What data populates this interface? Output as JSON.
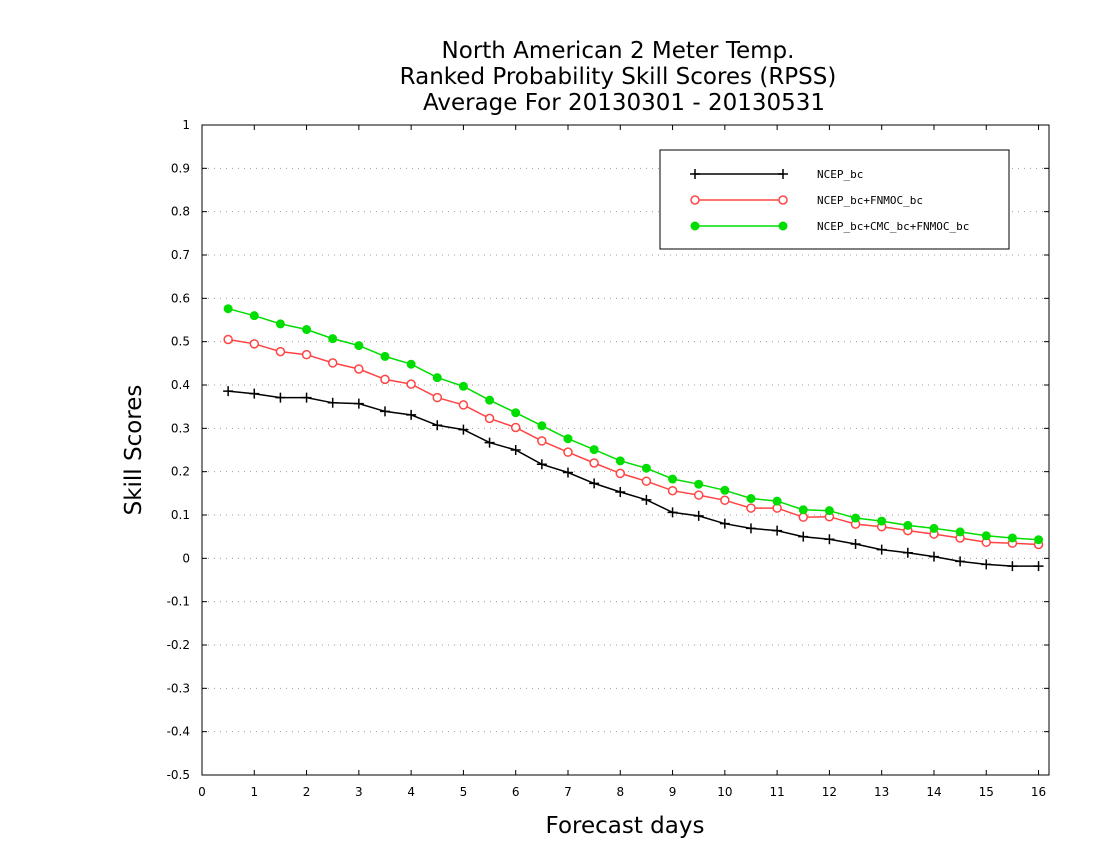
{
  "chart_data": {
    "type": "line",
    "title": [
      "North American 2 Meter Temp.",
      "Ranked Probability Skill Scores (RPSS)",
      "Average For 20130301 - 20130531"
    ],
    "xlabel": "Forecast days",
    "ylabel": "Skill Scores",
    "xlim": [
      0,
      16.2
    ],
    "ylim": [
      -0.5,
      1
    ],
    "xticks": [
      0,
      1,
      2,
      3,
      4,
      5,
      6,
      7,
      8,
      9,
      10,
      11,
      12,
      13,
      14,
      15,
      16
    ],
    "yticks": [
      -0.5,
      -0.4,
      -0.3,
      -0.2,
      -0.1,
      0,
      0.1,
      0.2,
      0.3,
      0.4,
      0.5,
      0.6,
      0.7,
      0.8,
      0.9,
      1
    ],
    "ytick_labels": [
      "-0.5",
      "-0.4",
      "-0.3",
      "-0.2",
      "-0.1",
      "0",
      "0.1",
      "0.2",
      "0.3",
      "0.4",
      "0.5",
      "0.6",
      "0.7",
      "0.8",
      "0.9",
      "1"
    ],
    "grid": "dotted horizontal",
    "legend_position": "top-right",
    "x": [
      0.5,
      1,
      1.5,
      2,
      2.5,
      3,
      3.5,
      4,
      4.5,
      5,
      5.5,
      6,
      6.5,
      7,
      7.5,
      8,
      8.5,
      9,
      9.5,
      10,
      10.5,
      11,
      11.5,
      12,
      12.5,
      13,
      13.5,
      14,
      14.5,
      15,
      15.5,
      16
    ],
    "series": [
      {
        "name": "NCEP_bc",
        "color": "#000000",
        "marker": "plus",
        "values": [
          0.386,
          0.38,
          0.371,
          0.371,
          0.359,
          0.357,
          0.339,
          0.331,
          0.307,
          0.297,
          0.267,
          0.25,
          0.217,
          0.198,
          0.173,
          0.153,
          0.135,
          0.106,
          0.098,
          0.08,
          0.069,
          0.064,
          0.05,
          0.044,
          0.033,
          0.02,
          0.013,
          0.004,
          -0.007,
          -0.014,
          -0.018,
          -0.018
        ]
      },
      {
        "name": "NCEP_bc+FNMOC_bc",
        "color": "#ff4444",
        "marker": "open-circle",
        "values": [
          0.505,
          0.495,
          0.477,
          0.47,
          0.451,
          0.437,
          0.413,
          0.402,
          0.371,
          0.354,
          0.323,
          0.302,
          0.271,
          0.245,
          0.22,
          0.196,
          0.178,
          0.156,
          0.146,
          0.134,
          0.116,
          0.116,
          0.095,
          0.096,
          0.079,
          0.073,
          0.064,
          0.056,
          0.047,
          0.037,
          0.035,
          0.032
        ]
      },
      {
        "name": "NCEP_bc+CMC_bc+FNMOC_bc",
        "color": "#00dd00",
        "marker": "filled-circle",
        "values": [
          0.576,
          0.56,
          0.541,
          0.528,
          0.507,
          0.491,
          0.466,
          0.448,
          0.417,
          0.397,
          0.365,
          0.336,
          0.306,
          0.276,
          0.251,
          0.225,
          0.208,
          0.183,
          0.171,
          0.157,
          0.138,
          0.132,
          0.112,
          0.11,
          0.093,
          0.086,
          0.076,
          0.069,
          0.061,
          0.052,
          0.047,
          0.043
        ]
      }
    ]
  }
}
